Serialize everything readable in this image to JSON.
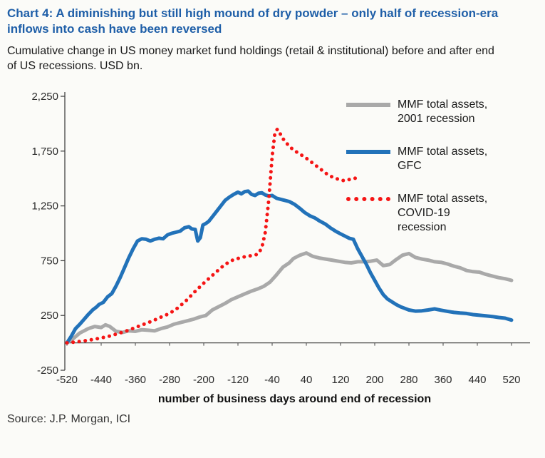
{
  "title": "Chart 4: A diminishing but still high mound of dry powder – only half of recession-era inflows into cash have been reversed",
  "subtitle": "Cumulative change in US money market fund holdings (retail & institutional) before and after end of US recessions. USD bn.",
  "source": "Source: J.P. Morgan, ICI",
  "colors": {
    "title_blue": "#1f5fa8",
    "axis": "#444444",
    "gray_series": "#a9a9a9",
    "blue_series": "#2272b9",
    "red_series": "#f51515"
  },
  "legend": {
    "items": [
      {
        "lines": [
          "MMF total assets,",
          "2001 recession",
          ""
        ]
      },
      {
        "lines": [
          "MMF total assets,",
          "GFC",
          ""
        ]
      },
      {
        "lines": [
          "MMF total assets,",
          "COVID-19",
          "recession"
        ]
      }
    ]
  },
  "chart_data": {
    "type": "line",
    "title": "",
    "xlabel": "number of business days around end of recession",
    "ylabel": "",
    "xlim": [
      -520,
      520
    ],
    "ylim": [
      -250,
      2250
    ],
    "grid": false,
    "legend_position": "top-right",
    "x_ticks": [
      -520,
      -440,
      -360,
      -280,
      -200,
      -120,
      -40,
      40,
      120,
      200,
      280,
      360,
      440,
      520
    ],
    "y_ticks": [
      -250,
      250,
      750,
      1250,
      1750,
      2250
    ],
    "y_tick_labels": [
      "-250",
      "250",
      "750",
      "1,250",
      "1,750",
      "2,250"
    ],
    "series": [
      {
        "id": "2001-recession",
        "name": "MMF total assets, 2001 recession",
        "color": "#a9a9a9",
        "style": "solid",
        "width": 5,
        "points": [
          [
            -520,
            0
          ],
          [
            -505,
            40
          ],
          [
            -490,
            90
          ],
          [
            -470,
            130
          ],
          [
            -455,
            150
          ],
          [
            -440,
            140
          ],
          [
            -430,
            165
          ],
          [
            -420,
            150
          ],
          [
            -405,
            105
          ],
          [
            -390,
            95
          ],
          [
            -375,
            110
          ],
          [
            -360,
            105
          ],
          [
            -345,
            120
          ],
          [
            -330,
            115
          ],
          [
            -315,
            110
          ],
          [
            -300,
            130
          ],
          [
            -285,
            145
          ],
          [
            -270,
            170
          ],
          [
            -255,
            185
          ],
          [
            -240,
            200
          ],
          [
            -225,
            215
          ],
          [
            -210,
            235
          ],
          [
            -195,
            250
          ],
          [
            -180,
            300
          ],
          [
            -165,
            330
          ],
          [
            -150,
            360
          ],
          [
            -135,
            395
          ],
          [
            -120,
            420
          ],
          [
            -105,
            445
          ],
          [
            -90,
            470
          ],
          [
            -75,
            490
          ],
          [
            -60,
            515
          ],
          [
            -45,
            555
          ],
          [
            -30,
            620
          ],
          [
            -15,
            690
          ],
          [
            0,
            730
          ],
          [
            10,
            770
          ],
          [
            25,
            800
          ],
          [
            40,
            820
          ],
          [
            55,
            790
          ],
          [
            70,
            775
          ],
          [
            85,
            765
          ],
          [
            100,
            755
          ],
          [
            115,
            745
          ],
          [
            130,
            735
          ],
          [
            145,
            730
          ],
          [
            160,
            740
          ],
          [
            175,
            740
          ],
          [
            190,
            745
          ],
          [
            205,
            755
          ],
          [
            220,
            705
          ],
          [
            235,
            715
          ],
          [
            250,
            760
          ],
          [
            265,
            800
          ],
          [
            280,
            815
          ],
          [
            295,
            780
          ],
          [
            310,
            765
          ],
          [
            325,
            755
          ],
          [
            340,
            740
          ],
          [
            355,
            735
          ],
          [
            370,
            720
          ],
          [
            385,
            700
          ],
          [
            400,
            685
          ],
          [
            415,
            660
          ],
          [
            430,
            650
          ],
          [
            445,
            645
          ],
          [
            460,
            625
          ],
          [
            475,
            610
          ],
          [
            490,
            595
          ],
          [
            505,
            585
          ],
          [
            520,
            570
          ]
        ]
      },
      {
        "id": "gfc",
        "name": "MMF total assets, GFC",
        "color": "#2272b9",
        "style": "solid",
        "width": 5,
        "points": [
          [
            -520,
            0
          ],
          [
            -510,
            60
          ],
          [
            -500,
            130
          ],
          [
            -490,
            170
          ],
          [
            -480,
            215
          ],
          [
            -470,
            260
          ],
          [
            -460,
            300
          ],
          [
            -450,
            330
          ],
          [
            -445,
            350
          ],
          [
            -435,
            370
          ],
          [
            -425,
            420
          ],
          [
            -415,
            450
          ],
          [
            -405,
            520
          ],
          [
            -395,
            600
          ],
          [
            -385,
            690
          ],
          [
            -375,
            780
          ],
          [
            -365,
            860
          ],
          [
            -355,
            930
          ],
          [
            -345,
            950
          ],
          [
            -335,
            945
          ],
          [
            -325,
            930
          ],
          [
            -315,
            945
          ],
          [
            -305,
            955
          ],
          [
            -295,
            950
          ],
          [
            -285,
            985
          ],
          [
            -275,
            1000
          ],
          [
            -265,
            1010
          ],
          [
            -255,
            1020
          ],
          [
            -245,
            1050
          ],
          [
            -235,
            1060
          ],
          [
            -228,
            1040
          ],
          [
            -220,
            1035
          ],
          [
            -214,
            930
          ],
          [
            -208,
            960
          ],
          [
            -202,
            1075
          ],
          [
            -195,
            1090
          ],
          [
            -188,
            1110
          ],
          [
            -180,
            1150
          ],
          [
            -170,
            1200
          ],
          [
            -160,
            1250
          ],
          [
            -150,
            1300
          ],
          [
            -140,
            1330
          ],
          [
            -130,
            1355
          ],
          [
            -120,
            1375
          ],
          [
            -112,
            1360
          ],
          [
            -104,
            1380
          ],
          [
            -96,
            1385
          ],
          [
            -88,
            1355
          ],
          [
            -80,
            1345
          ],
          [
            -72,
            1365
          ],
          [
            -64,
            1370
          ],
          [
            -56,
            1350
          ],
          [
            -48,
            1340
          ],
          [
            -40,
            1345
          ],
          [
            -30,
            1320
          ],
          [
            -20,
            1310
          ],
          [
            -10,
            1300
          ],
          [
            0,
            1290
          ],
          [
            12,
            1265
          ],
          [
            24,
            1230
          ],
          [
            36,
            1190
          ],
          [
            48,
            1160
          ],
          [
            60,
            1140
          ],
          [
            72,
            1110
          ],
          [
            84,
            1085
          ],
          [
            96,
            1050
          ],
          [
            108,
            1020
          ],
          [
            120,
            995
          ],
          [
            130,
            975
          ],
          [
            140,
            955
          ],
          [
            150,
            945
          ],
          [
            160,
            860
          ],
          [
            170,
            790
          ],
          [
            180,
            720
          ],
          [
            190,
            640
          ],
          [
            200,
            570
          ],
          [
            210,
            500
          ],
          [
            220,
            440
          ],
          [
            230,
            400
          ],
          [
            240,
            375
          ],
          [
            250,
            350
          ],
          [
            260,
            330
          ],
          [
            270,
            315
          ],
          [
            280,
            300
          ],
          [
            295,
            290
          ],
          [
            310,
            292
          ],
          [
            325,
            300
          ],
          [
            340,
            310
          ],
          [
            355,
            298
          ],
          [
            370,
            288
          ],
          [
            385,
            278
          ],
          [
            400,
            272
          ],
          [
            415,
            268
          ],
          [
            430,
            258
          ],
          [
            445,
            252
          ],
          [
            460,
            246
          ],
          [
            475,
            240
          ],
          [
            490,
            232
          ],
          [
            505,
            225
          ],
          [
            520,
            208
          ]
        ]
      },
      {
        "id": "covid-19-recession",
        "name": "MMF total assets, COVID-19 recession",
        "color": "#f51515",
        "style": "dotted",
        "width": 5,
        "points": [
          [
            -520,
            0
          ],
          [
            -500,
            8
          ],
          [
            -480,
            18
          ],
          [
            -460,
            30
          ],
          [
            -440,
            45
          ],
          [
            -420,
            62
          ],
          [
            -400,
            85
          ],
          [
            -380,
            110
          ],
          [
            -360,
            140
          ],
          [
            -340,
            170
          ],
          [
            -320,
            200
          ],
          [
            -300,
            235
          ],
          [
            -280,
            268
          ],
          [
            -260,
            320
          ],
          [
            -240,
            390
          ],
          [
            -220,
            470
          ],
          [
            -200,
            545
          ],
          [
            -190,
            580
          ],
          [
            -180,
            615
          ],
          [
            -170,
            650
          ],
          [
            -160,
            685
          ],
          [
            -150,
            715
          ],
          [
            -140,
            740
          ],
          [
            -130,
            760
          ],
          [
            -120,
            770
          ],
          [
            -110,
            780
          ],
          [
            -100,
            790
          ],
          [
            -90,
            795
          ],
          [
            -80,
            800
          ],
          [
            -72,
            815
          ],
          [
            -64,
            870
          ],
          [
            -56,
            1010
          ],
          [
            -48,
            1300
          ],
          [
            -40,
            1700
          ],
          [
            -34,
            1900
          ],
          [
            -28,
            1950
          ],
          [
            -22,
            1915
          ],
          [
            -16,
            1870
          ],
          [
            -8,
            1830
          ],
          [
            0,
            1795
          ],
          [
            10,
            1760
          ],
          [
            20,
            1735
          ],
          [
            30,
            1710
          ],
          [
            40,
            1685
          ],
          [
            50,
            1655
          ],
          [
            60,
            1625
          ],
          [
            70,
            1595
          ],
          [
            80,
            1565
          ],
          [
            90,
            1535
          ],
          [
            100,
            1515
          ],
          [
            110,
            1500
          ],
          [
            120,
            1485
          ],
          [
            130,
            1480
          ],
          [
            140,
            1490
          ],
          [
            150,
            1500
          ],
          [
            160,
            1505
          ]
        ]
      }
    ]
  }
}
